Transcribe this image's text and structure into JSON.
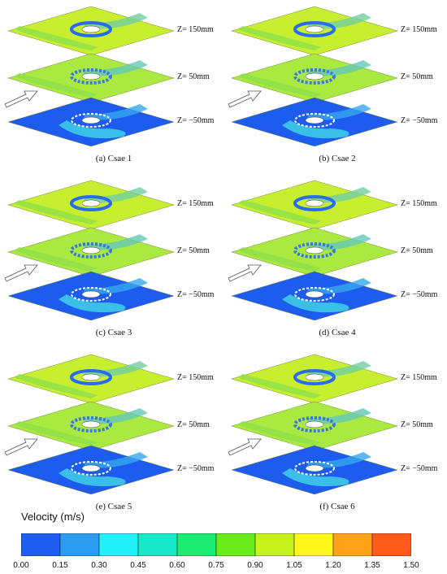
{
  "panels": [
    {
      "caption": "(a) Csae 1",
      "levels": [
        "Z= 150mm",
        "Z= 50mm",
        "Z= −50mm"
      ]
    },
    {
      "caption": "(b) Csae 2",
      "levels": [
        "Z= 150mm",
        "Z= 50mm",
        "Z= −50mm"
      ]
    },
    {
      "caption": "(c) Csae 3",
      "levels": [
        "Z= 150mm",
        "Z= 50mm",
        "Z= −50mm"
      ]
    },
    {
      "caption": "(d) Csae 4",
      "levels": [
        "Z= 150mm",
        "Z= 50mm",
        "Z= −50mm"
      ]
    },
    {
      "caption": "(e) Csae 5",
      "levels": [
        "Z= 150mm",
        "Z= 50mm",
        "Z= −50mm"
      ]
    },
    {
      "caption": "(f) Csae 6",
      "levels": [
        "Z= 150mm",
        "Z= 50mm",
        "Z= −50mm"
      ]
    }
  ],
  "legend": {
    "title": "Velocity (m/s)",
    "ticks": [
      "0.00",
      "0.15",
      "0.30",
      "0.45",
      "0.60",
      "0.75",
      "0.90",
      "1.05",
      "1.20",
      "1.35",
      "1.50"
    ],
    "colors": [
      "#1e5cf0",
      "#2a9cf0",
      "#22f0f8",
      "#16e8c8",
      "#1aec72",
      "#6aec1a",
      "#c4f21a",
      "#fff61a",
      "#ffa21a",
      "#ff5a1a"
    ]
  },
  "colors": {
    "plane_light": "#c8ee30",
    "plane_mid": "#aaea40",
    "plane_dark": "#1e5cf0",
    "wake": "#2ad0d8",
    "ring": "#2a6cf0"
  }
}
